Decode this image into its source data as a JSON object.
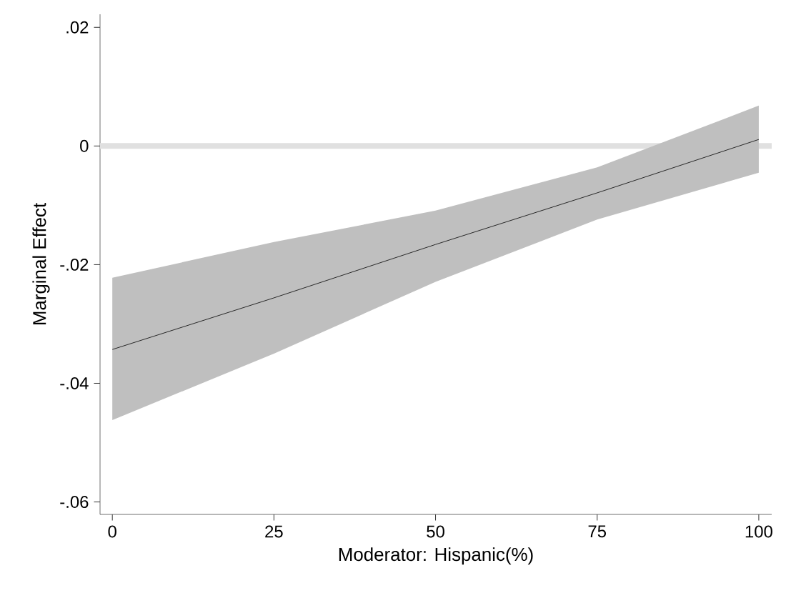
{
  "chart_data": {
    "type": "line",
    "xlabel": "Moderator: Hispanic(%)",
    "ylabel": "Marginal Effect",
    "x": [
      0,
      25,
      50,
      75,
      100
    ],
    "series": [
      {
        "color": "#000000",
        "values": [
          -0.0343,
          -0.0256,
          -0.0166,
          -0.0079,
          0.0011
        ],
        "lower": [
          -0.0462,
          -0.035,
          -0.0229,
          -0.0124,
          -0.0045
        ],
        "upper": [
          -0.0222,
          -0.0162,
          -0.0109,
          -0.0036,
          0.0068
        ]
      }
    ],
    "xlim": [
      -1.9,
      102
    ],
    "ylim": [
      -0.0621,
      0.0222
    ],
    "xticks": [
      0,
      25,
      50,
      75,
      100
    ],
    "yticks": [
      {
        "value": -0.06,
        "label": "-.06"
      },
      {
        "value": -0.04,
        "label": "-.04"
      },
      {
        "value": -0.02,
        "label": "-.02"
      },
      0,
      {
        "value": 0.02,
        "label": ".02"
      }
    ],
    "ref_lines": [
      {
        "axis": "y",
        "value": 0,
        "color": "#e0e0e0"
      }
    ],
    "grid": false,
    "marker": "none",
    "line_style": "solid"
  }
}
